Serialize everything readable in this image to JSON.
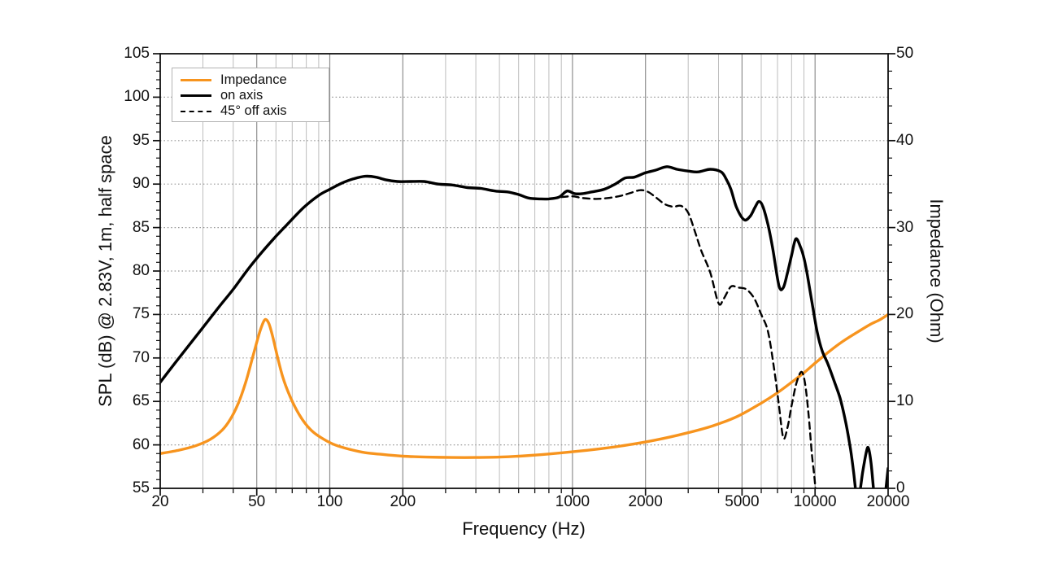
{
  "chart_data": {
    "type": "line",
    "title": "",
    "xlabel": "Frequency (Hz)",
    "x_scale": "log",
    "xlim": [
      20,
      20000
    ],
    "x_major_ticks": [
      20,
      50,
      100,
      200,
      1000,
      2000,
      5000,
      10000,
      20000
    ],
    "x_minor_ticks": [
      30,
      40,
      60,
      70,
      80,
      90,
      300,
      400,
      500,
      600,
      700,
      800,
      900,
      3000,
      4000,
      6000,
      7000,
      8000,
      9000
    ],
    "grid": "on",
    "y_left": {
      "label": "SPL (dB) @ 2.83V, 1m, half space",
      "lim": [
        55,
        105
      ],
      "major_ticks": [
        55,
        60,
        65,
        70,
        75,
        80,
        85,
        90,
        95,
        100,
        105
      ],
      "minor_step": 1
    },
    "y_right": {
      "label": "Impedance (Ohm)",
      "lim": [
        0,
        50
      ],
      "major_ticks": [
        0,
        10,
        20,
        30,
        40,
        50
      ],
      "minor_step": 2
    },
    "legend": {
      "position": "top-left",
      "entries": [
        {
          "label": "Impedance",
          "color": "#F7941E",
          "line_style": "solid"
        },
        {
          "label": "on axis",
          "color": "#000000",
          "line_style": "solid"
        },
        {
          "label": "45° off axis",
          "color": "#000000",
          "line_style": "dashed"
        }
      ]
    },
    "series": [
      {
        "name": "Impedance",
        "axis": "right",
        "unit": "Ohm",
        "color": "#F7941E",
        "style": "solid",
        "points": [
          [
            20,
            4.0
          ],
          [
            24,
            4.4
          ],
          [
            28,
            4.9
          ],
          [
            32,
            5.6
          ],
          [
            36,
            6.7
          ],
          [
            39,
            8.0
          ],
          [
            42,
            9.8
          ],
          [
            45,
            12.2
          ],
          [
            48,
            15.0
          ],
          [
            50,
            16.8
          ],
          [
            52,
            18.4
          ],
          [
            54,
            19.4
          ],
          [
            56,
            19.0
          ],
          [
            58,
            17.6
          ],
          [
            61,
            15.0
          ],
          [
            64,
            12.8
          ],
          [
            68,
            10.8
          ],
          [
            73,
            9.0
          ],
          [
            79,
            7.5
          ],
          [
            86,
            6.4
          ],
          [
            95,
            5.6
          ],
          [
            105,
            5.0
          ],
          [
            120,
            4.5
          ],
          [
            140,
            4.1
          ],
          [
            165,
            3.9
          ],
          [
            200,
            3.7
          ],
          [
            250,
            3.6
          ],
          [
            320,
            3.55
          ],
          [
            400,
            3.55
          ],
          [
            500,
            3.6
          ],
          [
            640,
            3.75
          ],
          [
            800,
            3.95
          ],
          [
            1000,
            4.2
          ],
          [
            1300,
            4.55
          ],
          [
            1700,
            5.0
          ],
          [
            2200,
            5.55
          ],
          [
            2900,
            6.3
          ],
          [
            3800,
            7.2
          ],
          [
            4800,
            8.3
          ],
          [
            6000,
            9.8
          ],
          [
            7000,
            11.0
          ],
          [
            8000,
            12.2
          ],
          [
            9000,
            13.3
          ],
          [
            10000,
            14.4
          ],
          [
            11500,
            15.8
          ],
          [
            13000,
            16.9
          ],
          [
            15000,
            18.0
          ],
          [
            17000,
            18.9
          ],
          [
            18500,
            19.4
          ],
          [
            20000,
            20.0
          ]
        ]
      },
      {
        "name": "on axis",
        "axis": "left",
        "unit": "dB",
        "color": "#000000",
        "style": "solid",
        "points": [
          [
            20,
            67.2
          ],
          [
            23,
            69.4
          ],
          [
            26,
            71.3
          ],
          [
            30,
            73.5
          ],
          [
            35,
            75.9
          ],
          [
            40,
            77.9
          ],
          [
            46,
            80.2
          ],
          [
            53,
            82.3
          ],
          [
            60,
            84.0
          ],
          [
            68,
            85.6
          ],
          [
            78,
            87.3
          ],
          [
            90,
            88.7
          ],
          [
            100,
            89.4
          ],
          [
            112,
            90.1
          ],
          [
            125,
            90.6
          ],
          [
            140,
            90.9
          ],
          [
            155,
            90.8
          ],
          [
            170,
            90.5
          ],
          [
            190,
            90.3
          ],
          [
            215,
            90.3
          ],
          [
            245,
            90.3
          ],
          [
            280,
            90.0
          ],
          [
            320,
            89.9
          ],
          [
            370,
            89.6
          ],
          [
            420,
            89.5
          ],
          [
            480,
            89.2
          ],
          [
            540,
            89.1
          ],
          [
            600,
            88.8
          ],
          [
            660,
            88.4
          ],
          [
            730,
            88.3
          ],
          [
            800,
            88.3
          ],
          [
            880,
            88.5
          ],
          [
            950,
            89.2
          ],
          [
            1020,
            88.9
          ],
          [
            1100,
            88.9
          ],
          [
            1200,
            89.1
          ],
          [
            1350,
            89.4
          ],
          [
            1500,
            90.0
          ],
          [
            1650,
            90.7
          ],
          [
            1800,
            90.8
          ],
          [
            2000,
            91.3
          ],
          [
            2200,
            91.6
          ],
          [
            2450,
            92.0
          ],
          [
            2700,
            91.7
          ],
          [
            3000,
            91.5
          ],
          [
            3300,
            91.4
          ],
          [
            3700,
            91.7
          ],
          [
            4100,
            91.4
          ],
          [
            4300,
            90.6
          ],
          [
            4500,
            89.4
          ],
          [
            4750,
            87.3
          ],
          [
            5100,
            85.9
          ],
          [
            5400,
            86.3
          ],
          [
            5650,
            87.3
          ],
          [
            5870,
            88.0
          ],
          [
            6100,
            87.4
          ],
          [
            6400,
            85.3
          ],
          [
            6700,
            82.5
          ],
          [
            7100,
            78.3
          ],
          [
            7400,
            78.1
          ],
          [
            7700,
            79.8
          ],
          [
            8000,
            81.8
          ],
          [
            8330,
            83.7
          ],
          [
            8700,
            82.8
          ],
          [
            9000,
            81.5
          ],
          [
            9300,
            79.5
          ],
          [
            9700,
            76.5
          ],
          [
            10200,
            73.0
          ],
          [
            10700,
            70.8
          ],
          [
            11300,
            69.3
          ],
          [
            12000,
            67.3
          ],
          [
            12700,
            65.3
          ],
          [
            13400,
            62.5
          ],
          [
            14000,
            59.5
          ],
          [
            14400,
            57.0
          ],
          [
            14900,
            53.6
          ],
          [
            15300,
            54.6
          ],
          [
            15700,
            56.8
          ],
          [
            16300,
            59.3
          ],
          [
            16600,
            59.6
          ],
          [
            17000,
            58.0
          ],
          [
            17400,
            55.0
          ],
          [
            17800,
            52.5
          ],
          [
            18300,
            52.0
          ],
          [
            18900,
            52.5
          ],
          [
            19400,
            54.0
          ],
          [
            20000,
            57.3
          ]
        ]
      },
      {
        "name": "45° off axis",
        "axis": "left",
        "unit": "dB",
        "color": "#000000",
        "style": "dashed",
        "points": [
          [
            900,
            88.5
          ],
          [
            1000,
            88.6
          ],
          [
            1100,
            88.4
          ],
          [
            1250,
            88.3
          ],
          [
            1400,
            88.4
          ],
          [
            1550,
            88.6
          ],
          [
            1700,
            88.9
          ],
          [
            1900,
            89.3
          ],
          [
            2050,
            89.1
          ],
          [
            2200,
            88.5
          ],
          [
            2400,
            87.7
          ],
          [
            2600,
            87.4
          ],
          [
            2800,
            87.5
          ],
          [
            3000,
            86.7
          ],
          [
            3200,
            84.5
          ],
          [
            3400,
            82.3
          ],
          [
            3700,
            79.8
          ],
          [
            4000,
            76.3
          ],
          [
            4200,
            76.8
          ],
          [
            4500,
            78.2
          ],
          [
            4800,
            78.1
          ],
          [
            5200,
            77.9
          ],
          [
            5600,
            76.9
          ],
          [
            6000,
            75.0
          ],
          [
            6400,
            73.0
          ],
          [
            6800,
            68.5
          ],
          [
            7100,
            64.5
          ],
          [
            7400,
            60.8
          ],
          [
            7700,
            62.0
          ],
          [
            8000,
            64.5
          ],
          [
            8400,
            67.2
          ],
          [
            8800,
            68.4
          ],
          [
            9100,
            67.0
          ],
          [
            9400,
            63.5
          ],
          [
            9700,
            59.0
          ],
          [
            10000,
            55.5
          ],
          [
            10300,
            51.0
          ]
        ]
      }
    ]
  }
}
